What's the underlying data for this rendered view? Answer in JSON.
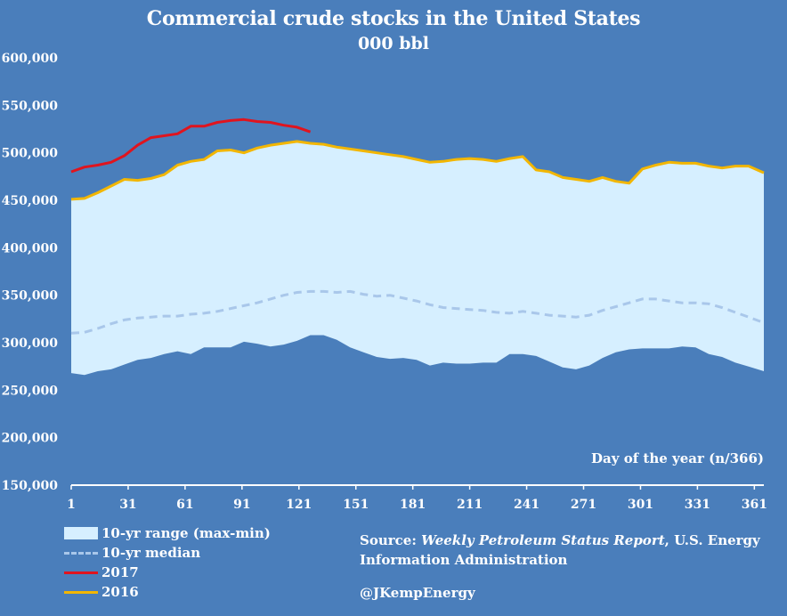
{
  "header": {
    "title": "Commercial crude stocks in the United States",
    "subtitle": "000 bbl"
  },
  "x_axis_title": "Day of the year (n/366)",
  "legend": {
    "range": "10-yr range (max-min)",
    "median": "10-yr median",
    "y2017": "2017",
    "y2016": "2016"
  },
  "source": {
    "prefix": "Source: ",
    "report": "Weekly Petroleum Status Report",
    "suffix": ", U.S. Energy Information Administration"
  },
  "handle": "@JKempEnergy",
  "colors": {
    "background": "#4a7ebb",
    "range_fill": "#d6efff",
    "median": "#a9c7ea",
    "line_2017": "#e0141e",
    "line_2016": "#f2b600"
  },
  "chart_data": {
    "type": "area",
    "title": "Commercial crude stocks in the United States",
    "subtitle": "000 bbl",
    "xlabel": "Day of the year (n/366)",
    "ylabel": "",
    "xlim": [
      1,
      366
    ],
    "ylim": [
      150000,
      600000
    ],
    "x_ticks": [
      1,
      31,
      61,
      91,
      121,
      151,
      181,
      211,
      241,
      271,
      301,
      331,
      361
    ],
    "y_ticks": [
      150000,
      200000,
      250000,
      300000,
      350000,
      400000,
      450000,
      500000,
      550000,
      600000
    ],
    "y_tick_labels": [
      "150,000",
      "200,000",
      "250,000",
      "300,000",
      "350,000",
      "400,000",
      "450,000",
      "500,000",
      "550,000",
      "600,000"
    ],
    "grid": false,
    "legend_position": "bottom-left",
    "series": [
      {
        "name": "10-yr range (max-min)",
        "kind": "range",
        "x": [
          1,
          8,
          15,
          22,
          29,
          36,
          43,
          50,
          57,
          64,
          71,
          78,
          85,
          92,
          99,
          106,
          113,
          120,
          127,
          134,
          141,
          148,
          155,
          162,
          169,
          176,
          183,
          190,
          197,
          204,
          211,
          218,
          225,
          232,
          239,
          246,
          253,
          260,
          267,
          274,
          281,
          288,
          295,
          302,
          309,
          316,
          323,
          330,
          337,
          344,
          351,
          358,
          366
        ],
        "max": [
          451000,
          452000,
          458000,
          465000,
          472000,
          471000,
          473000,
          477000,
          487000,
          491000,
          493000,
          502000,
          503000,
          500000,
          505000,
          508000,
          510000,
          512000,
          510000,
          509000,
          506000,
          504000,
          502000,
          500000,
          498000,
          496000,
          493000,
          490000,
          491000,
          493000,
          494000,
          493000,
          491000,
          494000,
          496000,
          482000,
          480000,
          474000,
          472000,
          470000,
          474000,
          470000,
          468000,
          483000,
          487000,
          490000,
          489000,
          489000,
          486000,
          484000,
          486000,
          486000,
          479000
        ],
        "min": [
          268000,
          266000,
          270000,
          272000,
          277000,
          282000,
          284000,
          288000,
          291000,
          288000,
          295000,
          295000,
          295000,
          301000,
          299000,
          296000,
          298000,
          302000,
          308000,
          308000,
          303000,
          295000,
          290000,
          285000,
          283000,
          284000,
          282000,
          276000,
          279000,
          278000,
          278000,
          279000,
          279000,
          288000,
          288000,
          286000,
          280000,
          274000,
          272000,
          276000,
          284000,
          290000,
          293000,
          294000,
          294000,
          294000,
          296000,
          295000,
          288000,
          285000,
          279000,
          275000,
          270000
        ]
      },
      {
        "name": "10-yr median",
        "kind": "line",
        "x": [
          1,
          8,
          15,
          22,
          29,
          36,
          43,
          50,
          57,
          64,
          71,
          78,
          85,
          92,
          99,
          106,
          113,
          120,
          127,
          134,
          141,
          148,
          155,
          162,
          169,
          176,
          183,
          190,
          197,
          204,
          211,
          218,
          225,
          232,
          239,
          246,
          253,
          260,
          267,
          274,
          281,
          288,
          295,
          302,
          309,
          316,
          323,
          330,
          337,
          344,
          351,
          358,
          366
        ],
        "values": [
          310000,
          311000,
          315000,
          320000,
          324000,
          326000,
          327000,
          328000,
          328000,
          330000,
          331000,
          333000,
          336000,
          339000,
          342000,
          346000,
          350000,
          353000,
          354000,
          354000,
          353000,
          354000,
          351000,
          349000,
          350000,
          347000,
          344000,
          340000,
          337000,
          336000,
          335000,
          334000,
          332000,
          331000,
          333000,
          331000,
          329000,
          328000,
          327000,
          329000,
          334000,
          338000,
          342000,
          346000,
          346000,
          344000,
          342000,
          342000,
          341000,
          337000,
          332000,
          327000,
          321000
        ]
      },
      {
        "name": "2017",
        "kind": "line",
        "x": [
          1,
          8,
          15,
          22,
          29,
          36,
          43,
          50,
          57,
          64,
          71,
          78,
          85,
          92,
          99,
          106,
          113,
          120,
          127
        ],
        "values": [
          480000,
          485000,
          487000,
          490000,
          497000,
          508000,
          516000,
          518000,
          520000,
          528000,
          528000,
          532000,
          534000,
          535000,
          533000,
          532000,
          529000,
          527000,
          522000
        ]
      },
      {
        "name": "2016",
        "kind": "line",
        "x": [
          1,
          8,
          15,
          22,
          29,
          36,
          43,
          50,
          57,
          64,
          71,
          78,
          85,
          92,
          99,
          106,
          113,
          120,
          127,
          134,
          141,
          148,
          155,
          162,
          169,
          176,
          183,
          190,
          197,
          204,
          211,
          218,
          225,
          232,
          239,
          246,
          253,
          260,
          267,
          274,
          281,
          288,
          295,
          302,
          309,
          316,
          323,
          330,
          337,
          344,
          351,
          358,
          366
        ],
        "values": [
          451000,
          452000,
          458000,
          465000,
          472000,
          471000,
          473000,
          477000,
          487000,
          491000,
          493000,
          502000,
          503000,
          500000,
          505000,
          508000,
          510000,
          512000,
          510000,
          509000,
          506000,
          504000,
          502000,
          500000,
          498000,
          496000,
          493000,
          490000,
          491000,
          493000,
          494000,
          493000,
          491000,
          494000,
          496000,
          482000,
          480000,
          474000,
          472000,
          470000,
          474000,
          470000,
          468000,
          483000,
          487000,
          490000,
          489000,
          489000,
          486000,
          484000,
          486000,
          486000,
          479000
        ]
      }
    ]
  }
}
